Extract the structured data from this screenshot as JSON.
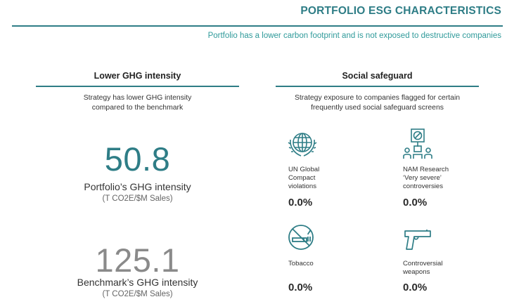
{
  "header": {
    "title": "PORTFOLIO ESG CHARACTERISTICS",
    "subtitle": "Portfolio has a lower carbon footprint and is not exposed to destructive companies"
  },
  "ghg": {
    "heading": "Lower GHG intensity",
    "desc_line1": "Strategy has lower GHG intensity",
    "desc_line2": "compared to  the benchmark",
    "portfolio": {
      "value": "50.8",
      "label": "Portfolio’s GHG intensity",
      "unit": "(T CO2E/$M Sales)"
    },
    "benchmark": {
      "value": "125.1",
      "label": "Benchmark’s GHG intensity",
      "unit": "(T CO2E/$M Sales)"
    }
  },
  "social": {
    "heading": "Social safeguard",
    "desc_line1": "Strategy exposure to companies flagged for certain",
    "desc_line2": "frequently used social safeguard screens",
    "items": [
      {
        "icon": "globe-laurel-icon",
        "label_lines": [
          "UN Global",
          "Compact",
          "violations"
        ],
        "value": "0.0%"
      },
      {
        "icon": "protest-group-icon",
        "label_lines": [
          "NAM Research",
          "‘Very severe’",
          "controversies"
        ],
        "value": "0.0%"
      },
      {
        "icon": "no-smoking-icon",
        "label_lines": [
          "Tobacco"
        ],
        "value": "0.0%"
      },
      {
        "icon": "pistol-icon",
        "label_lines": [
          "Controversial",
          "weapons"
        ],
        "value": "0.0%"
      }
    ]
  },
  "colors": {
    "accent": "#2e7d86",
    "subtitle": "#2f9a9a",
    "benchmark_grey": "#8a8a8a"
  }
}
